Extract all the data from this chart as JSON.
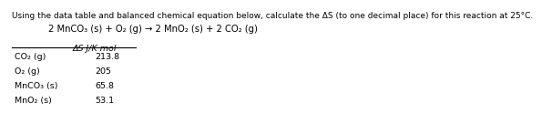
{
  "title_line1": "Using the data table and balanced chemical equation below, calculate the ΔS (to one decimal place) for this reaction at 25°C.",
  "equation": "2 MnCO₃ (s) + O₂ (g) → 2 MnO₂ (s) + 2 CO₂ (g)",
  "col_header": "ΔS J/K mol",
  "rows": [
    {
      "label": "CO₂ (g)",
      "value": "213.8"
    },
    {
      "label": "O₂ (g)",
      "value": "205"
    },
    {
      "label": "MnCO₃ (s)",
      "value": "65.8"
    },
    {
      "label": "MnO₂ (s)",
      "value": "53.1"
    }
  ],
  "bg_color": "#ffffff",
  "text_color": "#000000",
  "title_fontsize": 6.5,
  "eq_fontsize": 7.2,
  "table_fontsize": 6.8,
  "header_fontsize": 6.8
}
